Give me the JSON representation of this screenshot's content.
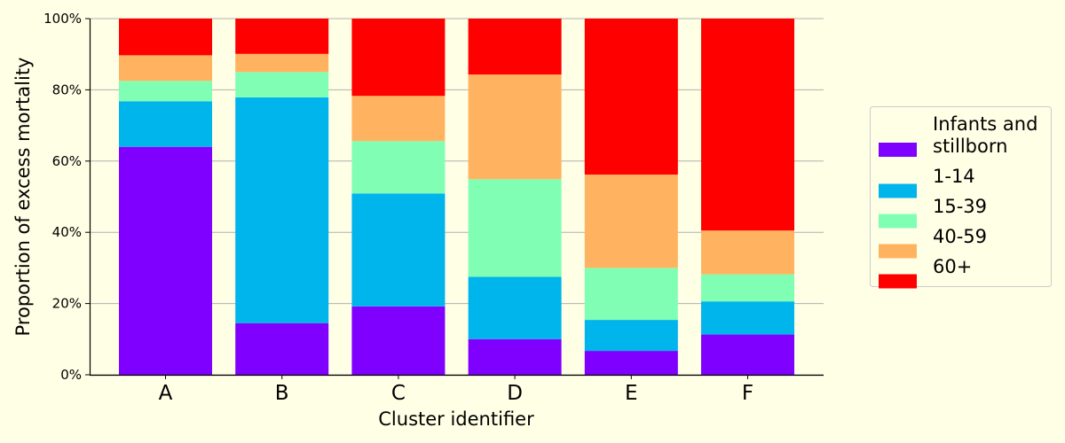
{
  "chart_data": {
    "type": "bar",
    "stacked": true,
    "categories": [
      "A",
      "B",
      "C",
      "D",
      "E",
      "F"
    ],
    "series": [
      {
        "name": "Infants and stillborn",
        "color": "#8000ff",
        "values": [
          64,
          14.5,
          19.2,
          10,
          6.7,
          11.3
        ]
      },
      {
        "name": "1-14",
        "color": "#00b4ec",
        "values": [
          12.8,
          63.4,
          31.7,
          17.5,
          8.7,
          9.3
        ]
      },
      {
        "name": "15-39",
        "color": "#80ffb4",
        "values": [
          5.7,
          7.1,
          14.7,
          27.4,
          14.6,
          7.6
        ]
      },
      {
        "name": "40-59",
        "color": "#ffb360",
        "values": [
          7.2,
          5.1,
          12.7,
          29.4,
          26.2,
          12.3
        ]
      },
      {
        "name": "60+",
        "color": "#ff0000",
        "values": [
          10.3,
          9.9,
          21.7,
          15.7,
          43.8,
          59.5
        ]
      }
    ],
    "xlabel": "Cluster identifier",
    "ylabel": "Proportion of excess mortality",
    "ylim": [
      0,
      100
    ],
    "yticks": [
      "0%",
      "20%",
      "40%",
      "60%",
      "80%",
      "100%"
    ],
    "grid": "horizontal",
    "legend_position": "right"
  }
}
